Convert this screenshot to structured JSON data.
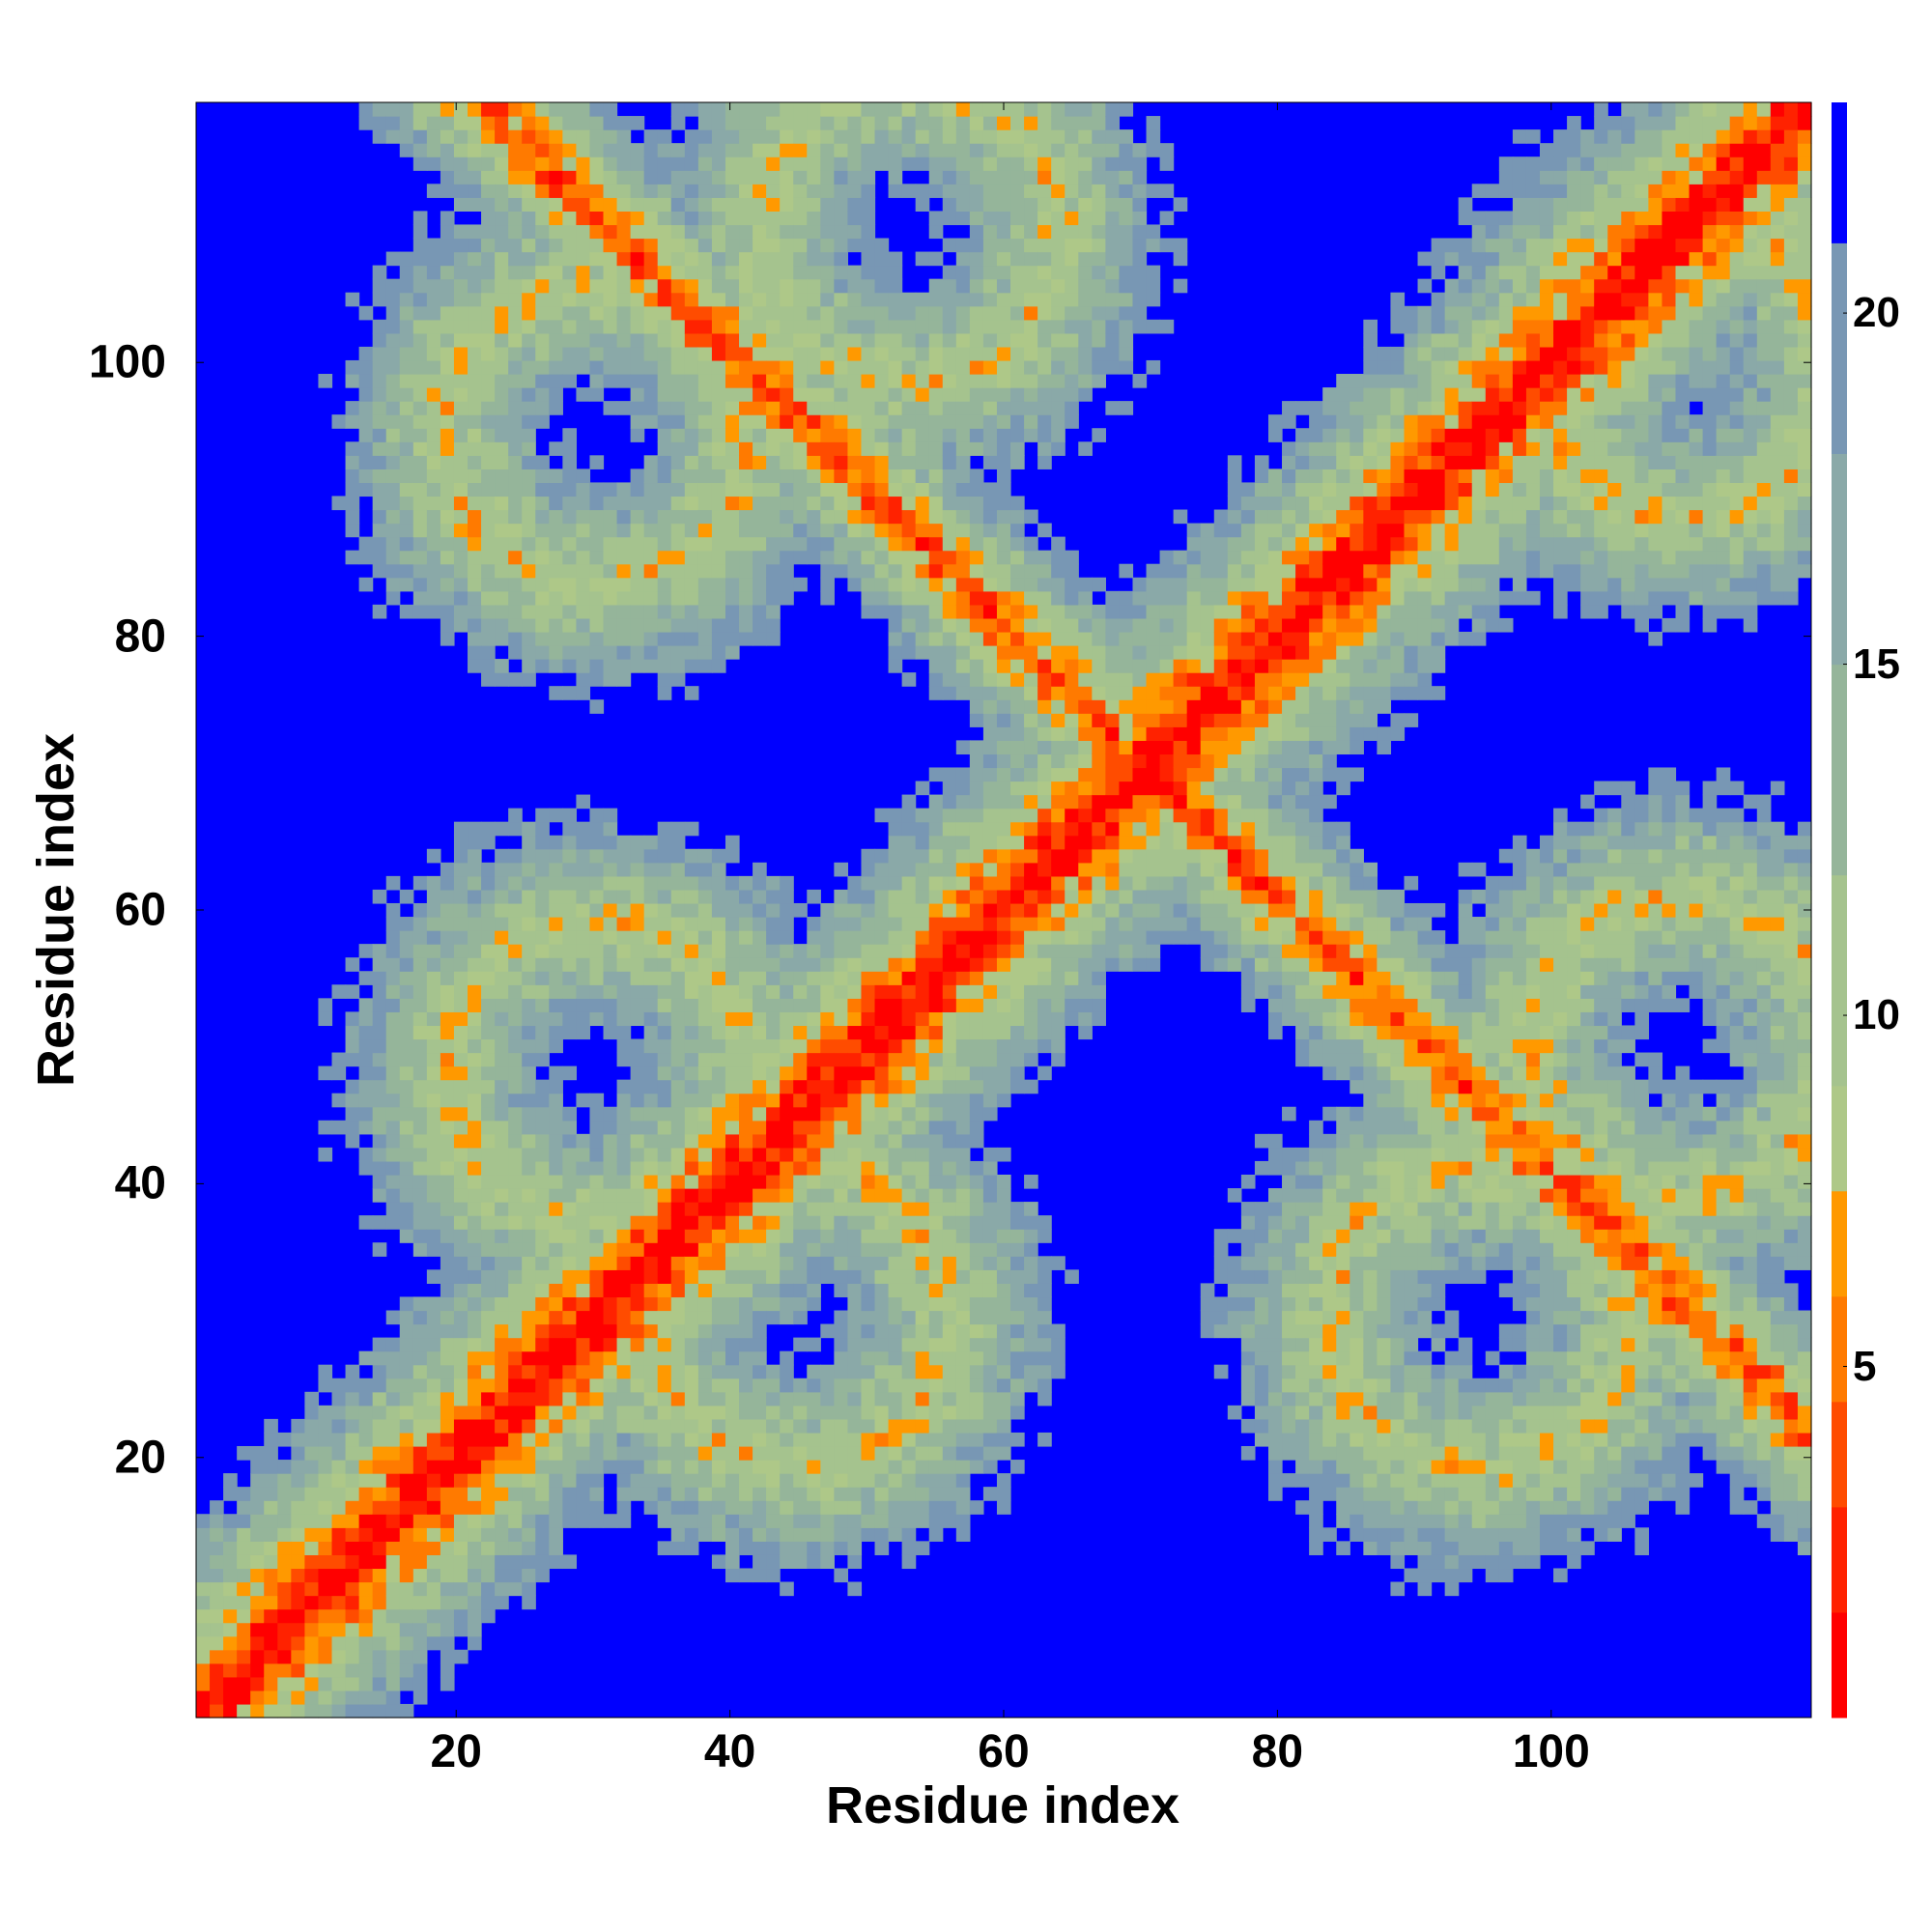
{
  "chart_data": {
    "type": "heatmap",
    "title": "",
    "xlabel": "Residue index",
    "ylabel": "Residue index",
    "xlim": [
      1,
      119
    ],
    "ylim": [
      1,
      119
    ],
    "n_residues": 119,
    "x_ticks": [
      20,
      40,
      60,
      80,
      100
    ],
    "y_ticks": [
      20,
      40,
      60,
      80,
      100
    ],
    "colorbar": {
      "ticks": [
        5,
        10,
        15,
        20
      ],
      "range": [
        0,
        23
      ],
      "levels": [
        {
          "max": 1.5,
          "color": "#ff0000"
        },
        {
          "max": 3.0,
          "color": "#ff2200"
        },
        {
          "max": 4.5,
          "color": "#ff4c00"
        },
        {
          "max": 6.0,
          "color": "#ff7a00"
        },
        {
          "max": 7.5,
          "color": "#ff9900"
        },
        {
          "max": 9.0,
          "color": "#aec888"
        },
        {
          "max": 12.0,
          "color": "#a5c38e"
        },
        {
          "max": 15.0,
          "color": "#95b59a"
        },
        {
          "max": 18.0,
          "color": "#8aa9a8"
        },
        {
          "max": 21.0,
          "color": "#7897b4"
        },
        {
          "max": 23.0,
          "color": "#0000ff"
        }
      ]
    },
    "background_color": "#0000ff",
    "structure": {
      "diagonal": "self-contacts along i=j (value 0)",
      "antidiagonal_band": "second strand pairs i + j = 141",
      "off_diagonal_clusters": [
        {
          "center": [
            30,
            95
          ],
          "description": "contact cluster upper-left"
        },
        {
          "center": [
            53,
            110
          ],
          "description": "contact cluster top"
        },
        {
          "center": [
            110,
            100
          ],
          "description": "contact cluster upper-right"
        },
        {
          "center": [
            30,
            48
          ],
          "description": "contact cluster lower-left"
        },
        {
          "center": [
            45,
            30
          ],
          "description": "contact cluster lower-middle"
        },
        {
          "center": [
            95,
            30
          ],
          "description": "contact cluster lower-right"
        },
        {
          "center": [
            110,
            50
          ],
          "description": "contact cluster right"
        }
      ]
    }
  }
}
